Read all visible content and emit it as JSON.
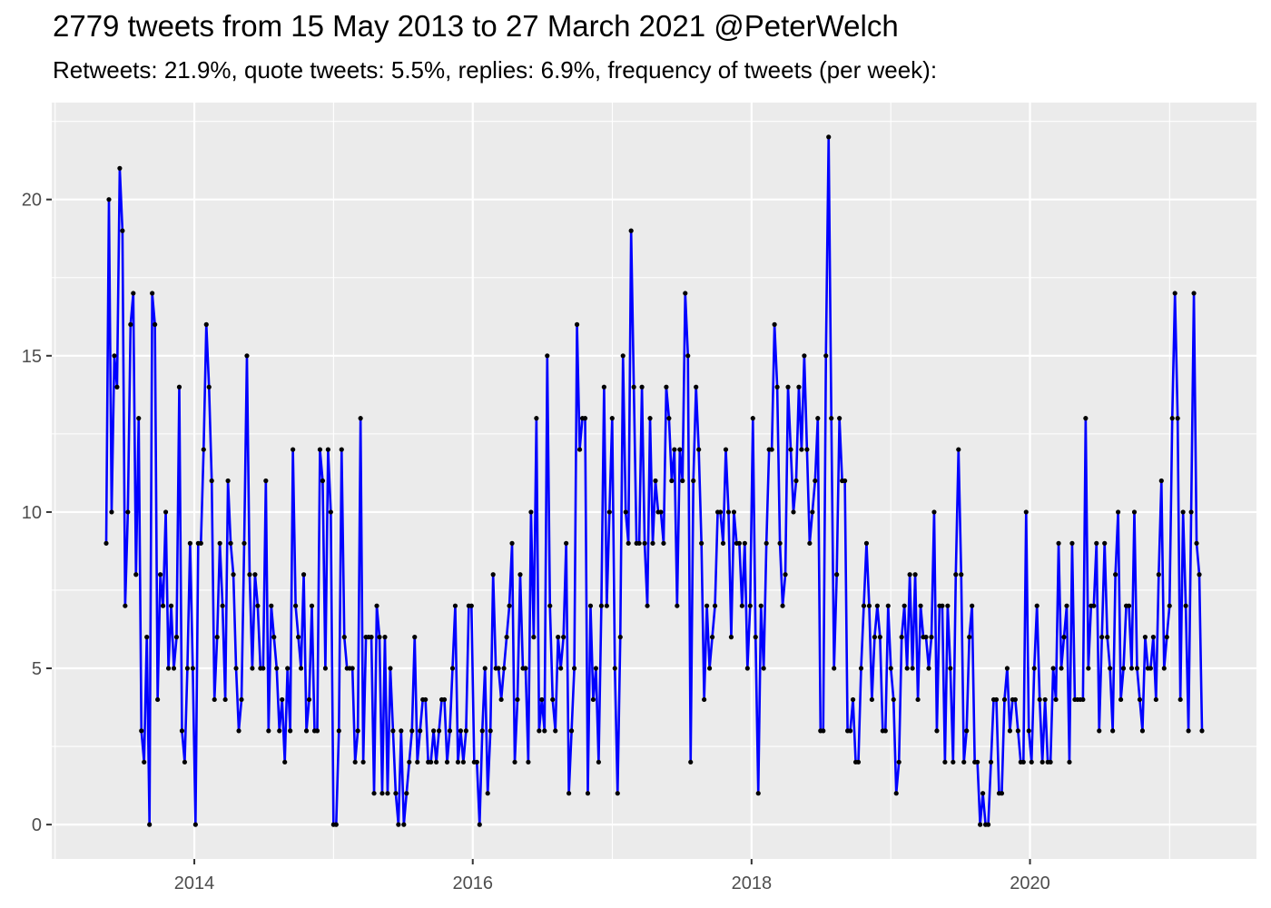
{
  "chart_data": {
    "type": "line",
    "title": "2779 tweets from 15 May 2013 to 27 March 2021 @PeterWelch",
    "subtitle": "Retweets: 21.9%, quote tweets: 5.5%, replies: 6.9%, frequency of tweets (per week):",
    "xlabel": "",
    "ylabel": "",
    "x_start": "2013-05-15",
    "x_end": "2021-03-27",
    "x_ticks": [
      "2014",
      "2016",
      "2018",
      "2020"
    ],
    "y_ticks": [
      "0",
      "5",
      "10",
      "15",
      "20"
    ],
    "ylim": [
      -1.1,
      23.1
    ],
    "grid": true,
    "legend": "none",
    "colors": {
      "line": "#0000ff",
      "points": "#000000",
      "panel": "#ebebeb",
      "grid": "#ffffff"
    },
    "series": [
      {
        "values": [
          9,
          20,
          10,
          15,
          14,
          21,
          19,
          7,
          10,
          16,
          17,
          8,
          13,
          3,
          2,
          6,
          0,
          17,
          16,
          4,
          8,
          7,
          10,
          5,
          7,
          5,
          6,
          14,
          3,
          2,
          5,
          9,
          5,
          0,
          9,
          9,
          12,
          16,
          14,
          11,
          4,
          6,
          9,
          7,
          4,
          11,
          9,
          8,
          5,
          3,
          4,
          9,
          15,
          8,
          5,
          8,
          7,
          5,
          5,
          11,
          3,
          7,
          6,
          5,
          3,
          4,
          2,
          5,
          3,
          12,
          7,
          6,
          5,
          8,
          3,
          4,
          7,
          3,
          3,
          12,
          11,
          5,
          12,
          10,
          0,
          0,
          3,
          12,
          6,
          5,
          5,
          5,
          2,
          3,
          13,
          2,
          6,
          6,
          6,
          1,
          7,
          6,
          1,
          6,
          1,
          5,
          3,
          1,
          0,
          3,
          0,
          1,
          2,
          3,
          6,
          2,
          3,
          4,
          4,
          2,
          2,
          3,
          2,
          3,
          4,
          4,
          2,
          3,
          5,
          7,
          2,
          3,
          2,
          3,
          7,
          7,
          2,
          2,
          0,
          3,
          5,
          1,
          3,
          8,
          5,
          5,
          4,
          5,
          6,
          7,
          9,
          2,
          4,
          8,
          5,
          5,
          2,
          10,
          6,
          13,
          3,
          4,
          3,
          15,
          7,
          4,
          3,
          6,
          5,
          6,
          9,
          1,
          3,
          5,
          16,
          12,
          13,
          13,
          1,
          7,
          4,
          5,
          2,
          7,
          14,
          7,
          10,
          13,
          5,
          1,
          6,
          15,
          10,
          9,
          19,
          14,
          9,
          9,
          14,
          9,
          7,
          13,
          9,
          11,
          10,
          10,
          9,
          14,
          13,
          11,
          12,
          7,
          12,
          11,
          17,
          15,
          2,
          11,
          14,
          12,
          9,
          4,
          7,
          5,
          6,
          7,
          10,
          10,
          9,
          12,
          10,
          6,
          10,
          9,
          9,
          7,
          9,
          5,
          7,
          13,
          6,
          1,
          7,
          5,
          9,
          12,
          12,
          16,
          14,
          9,
          7,
          8,
          14,
          12,
          10,
          11,
          14,
          12,
          15,
          12,
          9,
          10,
          11,
          13,
          3,
          3,
          15,
          22,
          13,
          5,
          8,
          13,
          11,
          11,
          3,
          3,
          4,
          2,
          2,
          5,
          7,
          9,
          7,
          4,
          6,
          7,
          6,
          3,
          3,
          7,
          5,
          4,
          1,
          2,
          6,
          7,
          5,
          8,
          5,
          8,
          4,
          7,
          6,
          6,
          5,
          6,
          10,
          3,
          7,
          7,
          2,
          7,
          5,
          2,
          8,
          12,
          8,
          2,
          3,
          6,
          7,
          2,
          2,
          0,
          1,
          0,
          0,
          2,
          4,
          4,
          1,
          1,
          4,
          5,
          3,
          4,
          4,
          3,
          2,
          2,
          10,
          3,
          2,
          5,
          7,
          4,
          2,
          4,
          2,
          2,
          5,
          4,
          9,
          5,
          6,
          7,
          2,
          9,
          4,
          4,
          4,
          4,
          13,
          5,
          7,
          7,
          9,
          3,
          6,
          9,
          6,
          5,
          3,
          8,
          10,
          4,
          5,
          7,
          7,
          5,
          10,
          5,
          4,
          3,
          6,
          5,
          5,
          6,
          4,
          8,
          11,
          5,
          6,
          7,
          13,
          17,
          13,
          4,
          10,
          7,
          3,
          10,
          17,
          9,
          8,
          3
        ]
      }
    ]
  }
}
